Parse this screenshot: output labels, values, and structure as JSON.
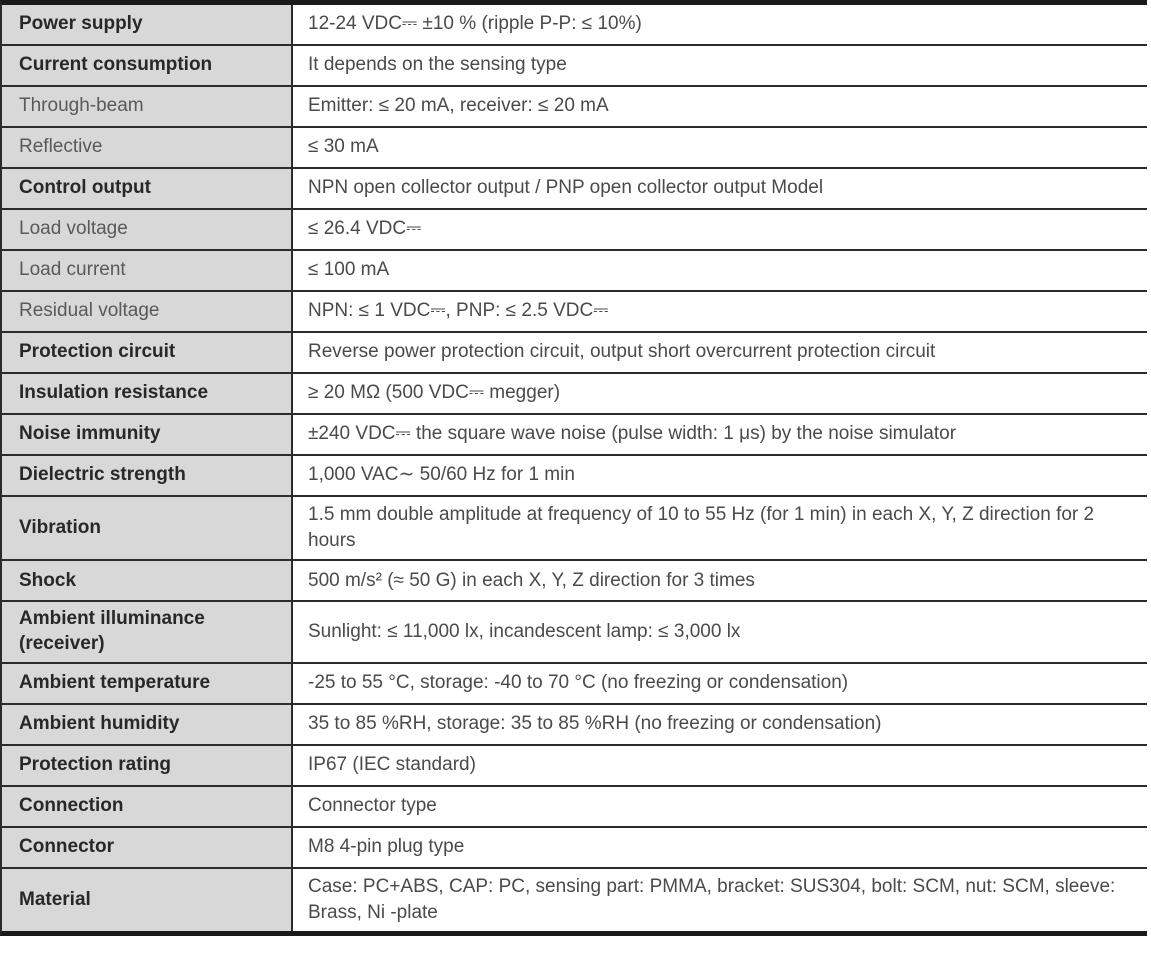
{
  "document": {
    "type": "product-specification-table",
    "colors": {
      "label_column_background": "#d8d8d8",
      "grid_line": "#2b2b2b",
      "outer_bar": "#1a1a1a",
      "label_text": "#282828",
      "sub_label_text": "#58595b",
      "value_text": "#4a4a4c"
    }
  },
  "table": {
    "rows": [
      {
        "label": "Power supply",
        "value": "12-24 VDC⎓ ±10 % (ripple P-P: ≤ 10%)",
        "emphasis": true
      },
      {
        "label": "Current consumption",
        "value": "It depends on the sensing type",
        "emphasis": true
      },
      {
        "label": "Through-beam",
        "value": "Emitter: ≤ 20 mA, receiver: ≤ 20 mA",
        "emphasis": false
      },
      {
        "label": "Reflective",
        "value": "≤ 30 mA",
        "emphasis": false
      },
      {
        "label": "Control output",
        "value": "NPN open collector output / PNP open collector output Model",
        "emphasis": true
      },
      {
        "label": "Load voltage",
        "value": "≤ 26.4 VDC⎓",
        "emphasis": false
      },
      {
        "label": "Load current",
        "value": "≤ 100 mA",
        "emphasis": false
      },
      {
        "label": "Residual voltage",
        "value": "NPN: ≤ 1 VDC⎓, PNP: ≤ 2.5 VDC⎓",
        "emphasis": false
      },
      {
        "label": "Protection circuit",
        "value": "Reverse power protection circuit, output short overcurrent protection circuit",
        "emphasis": true
      },
      {
        "label": "Insulation resistance",
        "value": "≥ 20 MΩ (500 VDC⎓ megger)",
        "emphasis": true
      },
      {
        "label": "Noise immunity",
        "value": "±240 VDC⎓ the square wave noise (pulse width: 1 μs) by the noise simulator",
        "emphasis": true
      },
      {
        "label": "Dielectric strength",
        "value": "1,000 VAC∼ 50/60 Hz for 1 min",
        "emphasis": true
      },
      {
        "label": "Vibration",
        "value": "1.5 mm double amplitude at frequency of 10 to 55 Hz (for 1 min) in each X, Y, Z direction for 2 hours",
        "emphasis": true
      },
      {
        "label": "Shock",
        "value": "500 m/s² (≈ 50 G) in each  X, Y, Z direction for 3 times",
        "emphasis": true
      },
      {
        "label": "Ambient illuminance (receiver)",
        "value": "Sunlight: ≤ 11,000 lx, incandescent lamp: ≤ 3,000 lx",
        "emphasis": true
      },
      {
        "label": "Ambient temperature",
        "value": "-25 to 55 °C, storage: -40 to 70 °C (no freezing or condensation)",
        "emphasis": true
      },
      {
        "label": "Ambient humidity",
        "value": "35 to 85 %RH, storage: 35 to 85 %RH (no freezing or condensation)",
        "emphasis": true
      },
      {
        "label": "Protection rating",
        "value": "IP67 (IEC standard)",
        "emphasis": true
      },
      {
        "label": "Connection",
        "value": "Connector type",
        "emphasis": true
      },
      {
        "label": "Connector",
        "value": "M8 4-pin plug type",
        "emphasis": true
      },
      {
        "label": "Material",
        "value": "Case: PC+ABS, CAP: PC, sensing part: PMMA, bracket: SUS304, bolt: SCM, nut: SCM, sleeve: Brass, Ni -plate",
        "emphasis": true
      }
    ]
  }
}
